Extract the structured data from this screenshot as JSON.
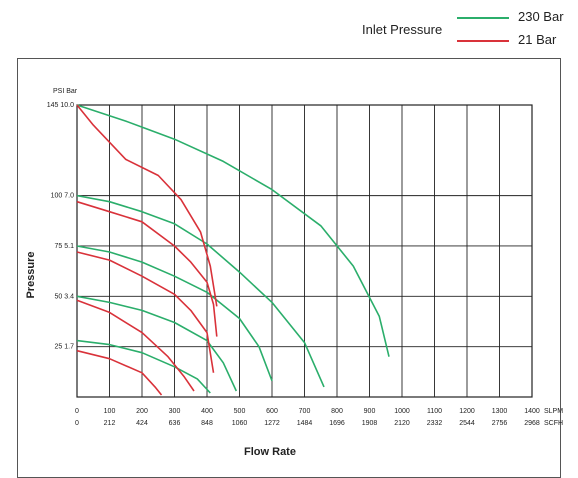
{
  "legend": {
    "title": "Inlet Pressure",
    "entries": [
      {
        "label": "230 Bar",
        "color": "#2bae6b"
      },
      {
        "label": "21 Bar",
        "color": "#d9323a"
      }
    ]
  },
  "chart_data": {
    "type": "line",
    "title": "",
    "xlabel": "Flow Rate",
    "ylabel": "Pressure",
    "y_units_label": "PSI Bar",
    "x_units": [
      "SLPM",
      "SCFH"
    ],
    "xlim": [
      0,
      1400
    ],
    "ylim": [
      0,
      145
    ],
    "grid": true,
    "x_ticks": [
      0,
      100,
      200,
      300,
      400,
      500,
      600,
      700,
      800,
      900,
      1000,
      1100,
      1200,
      1300,
      1400
    ],
    "x_tick_labels_slpm": [
      "0",
      "100",
      "200",
      "300",
      "400",
      "500",
      "600",
      "700",
      "800",
      "900",
      "1000",
      "1100",
      "1200",
      "1300",
      "1400"
    ],
    "x_tick_labels_scfh": [
      "0",
      "212",
      "424",
      "636",
      "848",
      "1060",
      "1272",
      "1484",
      "1696",
      "1908",
      "2120",
      "2332",
      "2544",
      "2756",
      "2968"
    ],
    "y_ticks": [
      25,
      50,
      75,
      100,
      145
    ],
    "y_tick_labels": [
      "25 1.7",
      "50 3.4",
      "75 5.1",
      "100 7.0",
      "145 10.0"
    ],
    "series": [
      {
        "inlet": "230 Bar",
        "color": "#2bae6b",
        "x": [
          0,
          150,
          300,
          450,
          600,
          750,
          850,
          930,
          960
        ],
        "y": [
          145,
          137,
          128,
          117,
          103,
          85,
          65,
          40,
          20
        ]
      },
      {
        "inlet": "230 Bar",
        "color": "#2bae6b",
        "x": [
          0,
          100,
          200,
          300,
          400,
          500,
          600,
          700,
          760
        ],
        "y": [
          100,
          97,
          92,
          86,
          76,
          62,
          47,
          27,
          5
        ]
      },
      {
        "inlet": "230 Bar",
        "color": "#2bae6b",
        "x": [
          0,
          100,
          200,
          300,
          400,
          500,
          560,
          600
        ],
        "y": [
          75,
          72,
          67,
          60,
          52,
          39,
          25,
          8
        ]
      },
      {
        "inlet": "230 Bar",
        "color": "#2bae6b",
        "x": [
          0,
          100,
          200,
          300,
          400,
          450,
          490
        ],
        "y": [
          50,
          47,
          43,
          37,
          28,
          17,
          3
        ]
      },
      {
        "inlet": "230 Bar",
        "color": "#2bae6b",
        "x": [
          0,
          100,
          200,
          300,
          370,
          410
        ],
        "y": [
          28,
          26,
          22,
          15,
          9,
          2
        ]
      },
      {
        "inlet": "21 Bar",
        "color": "#d9323a",
        "x": [
          0,
          50,
          150,
          250,
          320,
          380,
          410,
          430
        ],
        "y": [
          145,
          135,
          118,
          110,
          98,
          82,
          65,
          45
        ]
      },
      {
        "inlet": "21 Bar",
        "color": "#d9323a",
        "x": [
          0,
          100,
          200,
          300,
          350,
          400,
          420,
          430
        ],
        "y": [
          97,
          92,
          87,
          75,
          67,
          57,
          46,
          30
        ]
      },
      {
        "inlet": "21 Bar",
        "color": "#d9323a",
        "x": [
          0,
          100,
          200,
          300,
          350,
          400,
          420
        ],
        "y": [
          72,
          68,
          60,
          51,
          43,
          32,
          12
        ]
      },
      {
        "inlet": "21 Bar",
        "color": "#d9323a",
        "x": [
          0,
          100,
          200,
          280,
          330,
          360
        ],
        "y": [
          48,
          42,
          32,
          20,
          10,
          3
        ]
      },
      {
        "inlet": "21 Bar",
        "color": "#d9323a",
        "x": [
          0,
          100,
          200,
          240,
          260
        ],
        "y": [
          23,
          19,
          12,
          5,
          1
        ]
      }
    ]
  }
}
